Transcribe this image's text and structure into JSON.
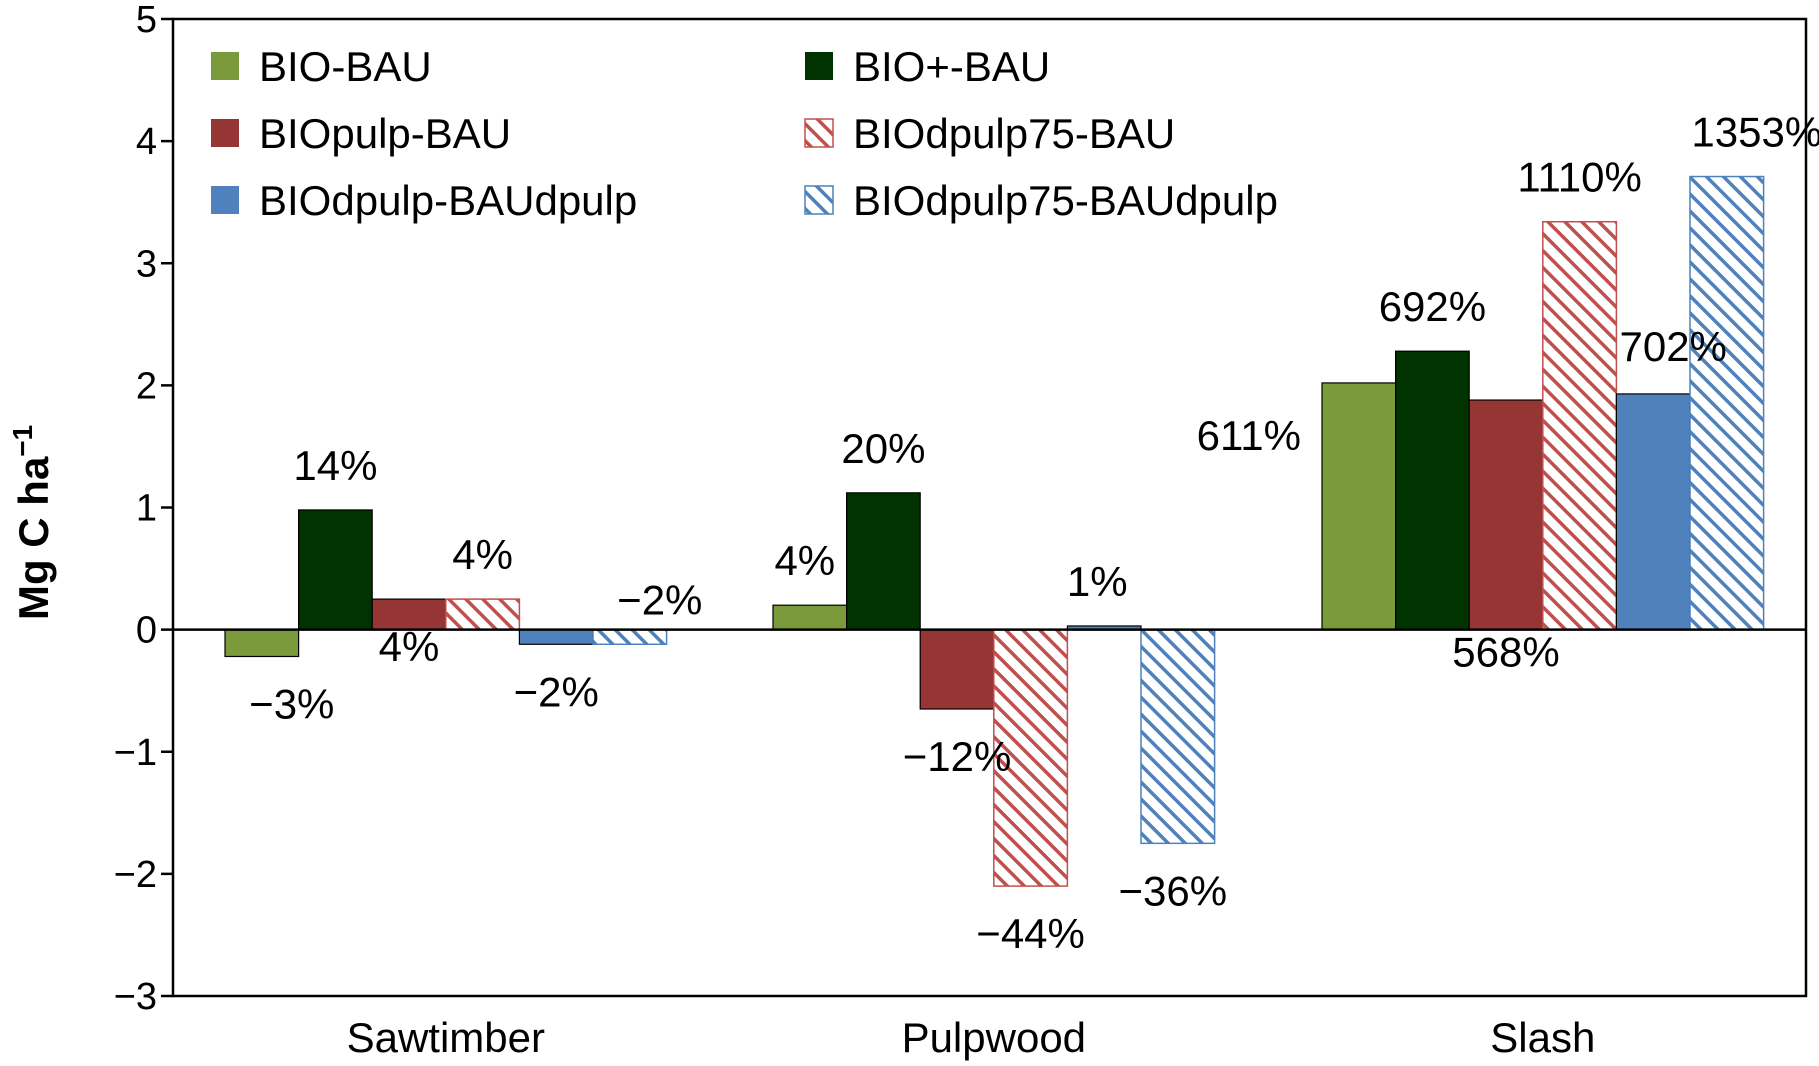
{
  "chart_data": {
    "type": "bar",
    "title": "",
    "xlabel": "",
    "ylabel": "Mg C ha",
    "ylabel_sup": "−1",
    "ylim": [
      -3,
      5
    ],
    "yticks": [
      5,
      4,
      3,
      2,
      1,
      0,
      -1,
      -2,
      -3
    ],
    "ytick_labels": [
      "5",
      "4",
      "3",
      "2",
      "1",
      "0",
      "−1",
      "−2",
      "−3"
    ],
    "grid": false,
    "legend_position": "top-left",
    "categories": [
      "Sawtimber",
      "Pulpwood",
      "Slash"
    ],
    "series": [
      {
        "name": "BIO-BAU",
        "color": "#7a9a3c",
        "pattern": "solid",
        "values": [
          -0.22,
          0.2,
          2.02
        ],
        "labels": [
          "−3%",
          "4%",
          "611%"
        ]
      },
      {
        "name": "BIO+-BAU",
        "color": "#003300",
        "pattern": "solid",
        "values": [
          0.98,
          1.12,
          2.28
        ],
        "labels": [
          "14%",
          "20%",
          "692%"
        ]
      },
      {
        "name": "BIOpulp-BAU",
        "color": "#963634",
        "pattern": "solid",
        "values": [
          0.25,
          -0.65,
          1.88
        ],
        "labels": [
          "4%",
          "−12%",
          "568%"
        ]
      },
      {
        "name": "BIOdpulp75-BAU",
        "color": "#c0504d",
        "pattern": "hatched",
        "values": [
          0.25,
          -2.1,
          3.34
        ],
        "labels": [
          "4%",
          "−44%",
          "1110%"
        ]
      },
      {
        "name": "BIOdpulp-BAUdpulp",
        "color": "#4f81bd",
        "pattern": "solid",
        "values": [
          -0.12,
          0.03,
          1.93
        ],
        "labels": [
          "−2%",
          "1%",
          "702%"
        ]
      },
      {
        "name": "BIOdpulp75-BAUdpulp",
        "color": "#4f81bd",
        "pattern": "hatched",
        "values": [
          -0.12,
          -1.75,
          3.71
        ],
        "labels": [
          "−2%",
          "−36%",
          "1353%"
        ]
      }
    ]
  }
}
